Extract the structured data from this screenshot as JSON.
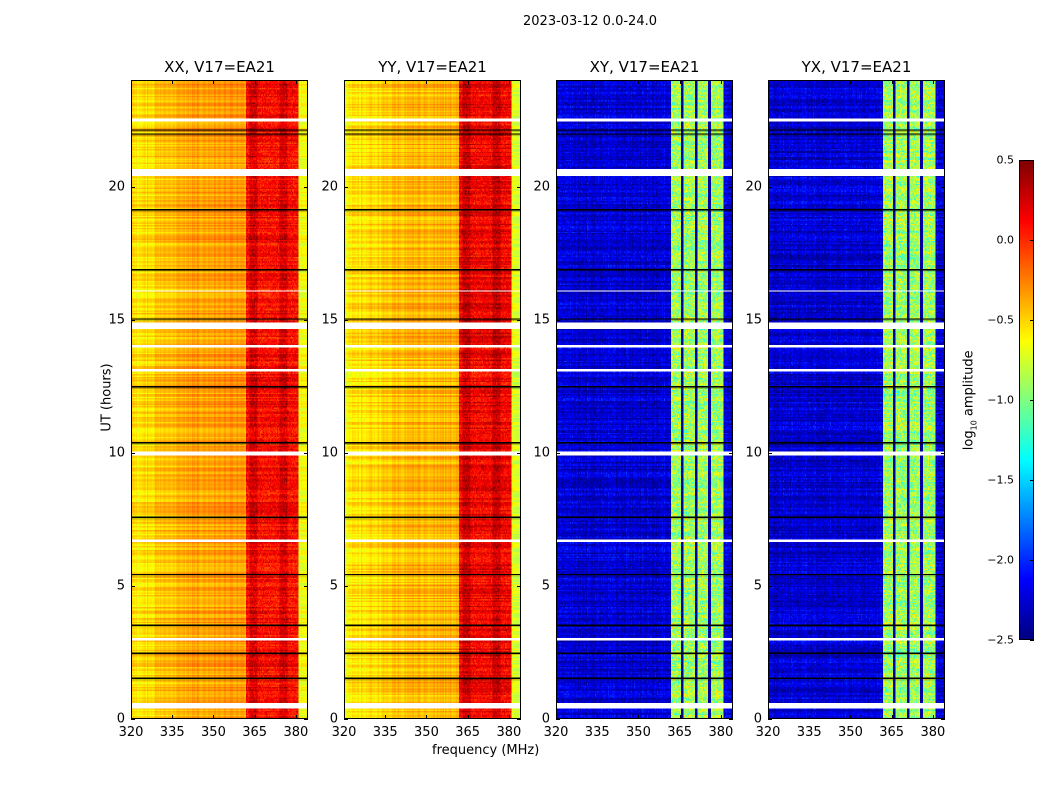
{
  "chart_data": {
    "type": "heatmap",
    "suptitle": "2023-03-12 0.0-24.0",
    "xlabel": "frequency (MHz)",
    "ylabel": "UT (hours)",
    "xlim": [
      320,
      384.4
    ],
    "ylim": [
      0,
      24
    ],
    "xticks": [
      "320",
      "335",
      "350",
      "365",
      "380"
    ],
    "yticks": [
      "0",
      "5",
      "10",
      "15",
      "20"
    ],
    "panels": [
      {
        "title": "XX, V17=EA21",
        "base_log_amplitude": -0.35,
        "rfi_band_mhz": [
          362,
          381
        ],
        "rfi_log_amplitude": 0.1
      },
      {
        "title": "YY, V17=EA21",
        "base_log_amplitude": -0.4,
        "rfi_band_mhz": [
          362,
          381
        ],
        "rfi_log_amplitude": 0.15
      },
      {
        "title": "XY, V17=EA21",
        "base_log_amplitude": -2.25,
        "rfi_band_mhz": [
          362,
          381
        ],
        "rfi_log_amplitude": -0.9
      },
      {
        "title": "YX, V17=EA21",
        "base_log_amplitude": -2.25,
        "rfi_band_mhz": [
          362,
          381
        ],
        "rfi_log_amplitude": -0.9
      }
    ],
    "flagged_white_hours": [
      [
        0.4,
        0.6
      ],
      [
        2.95,
        3.05
      ],
      [
        6.65,
        6.75
      ],
      [
        9.9,
        10.05
      ],
      [
        13.05,
        13.15
      ],
      [
        13.95,
        14.05
      ],
      [
        14.65,
        14.9
      ],
      [
        16.05,
        16.12
      ],
      [
        20.4,
        20.65
      ],
      [
        22.45,
        22.55
      ]
    ],
    "flagged_black_hours": [
      1.55,
      2.5,
      3.55,
      5.45,
      7.6,
      10.4,
      12.5,
      15.05,
      16.9,
      19.15,
      22.0,
      22.15
    ],
    "colorbar": {
      "label": "log10 amplitude",
      "range": [
        -2.5,
        0.5
      ],
      "ticks": [
        "0.5",
        "0.0",
        "−0.5",
        "−1.0",
        "−1.5",
        "−2.0",
        "−2.5"
      ],
      "colormap": "jet"
    }
  }
}
